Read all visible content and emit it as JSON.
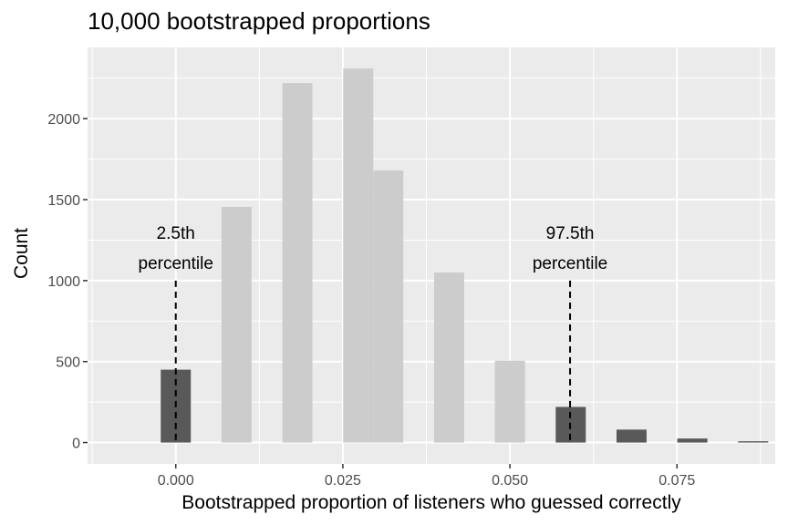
{
  "chart_data": {
    "type": "bar",
    "title": "10,000 bootstrapped proportions",
    "xlabel": "Bootstrapped proportion of listeners who guessed correctly",
    "ylabel": "Count",
    "xlim": [
      -0.0132,
      0.0897
    ],
    "ylim": [
      -132,
      2440
    ],
    "x_ticks": [
      0.0,
      0.025,
      0.05,
      0.075
    ],
    "x_tick_labels": [
      "0.000",
      "0.025",
      "0.050",
      "0.075"
    ],
    "y_ticks": [
      0,
      500,
      1000,
      1500,
      2000
    ],
    "y_tick_labels": [
      "0",
      "500",
      "1000",
      "1500",
      "2000"
    ],
    "bar_width": 0.0045,
    "grid": true,
    "bars": [
      {
        "x": 0.0,
        "value": 450,
        "tail": true
      },
      {
        "x": 0.0091,
        "value": 1455,
        "tail": false
      },
      {
        "x": 0.0182,
        "value": 2220,
        "tail": false
      },
      {
        "x": 0.0273,
        "value": 2310,
        "tail": false
      },
      {
        "x": 0.0318,
        "value": 1680,
        "tail": false
      },
      {
        "x": 0.0409,
        "value": 1050,
        "tail": false
      },
      {
        "x": 0.05,
        "value": 505,
        "tail": false
      },
      {
        "x": 0.0591,
        "value": 220,
        "tail": true
      },
      {
        "x": 0.0682,
        "value": 80,
        "tail": true
      },
      {
        "x": 0.0773,
        "value": 25,
        "tail": true
      },
      {
        "x": 0.0864,
        "value": 8,
        "tail": true
      }
    ],
    "colors": {
      "tail_bar": "#595959",
      "middle_bar": "#cccccc",
      "panel_background": "#ebebeb",
      "grid_line": "#ffffff",
      "reference_line": "#000000"
    },
    "annotations": [
      {
        "x": 0.0,
        "line_top": 1000,
        "line_bottom": 0,
        "label_line1": "2.5th",
        "label_line2": "percentile"
      },
      {
        "x": 0.059,
        "line_top": 1000,
        "line_bottom": 0,
        "label_line1": "97.5th",
        "label_line2": "percentile"
      }
    ]
  }
}
